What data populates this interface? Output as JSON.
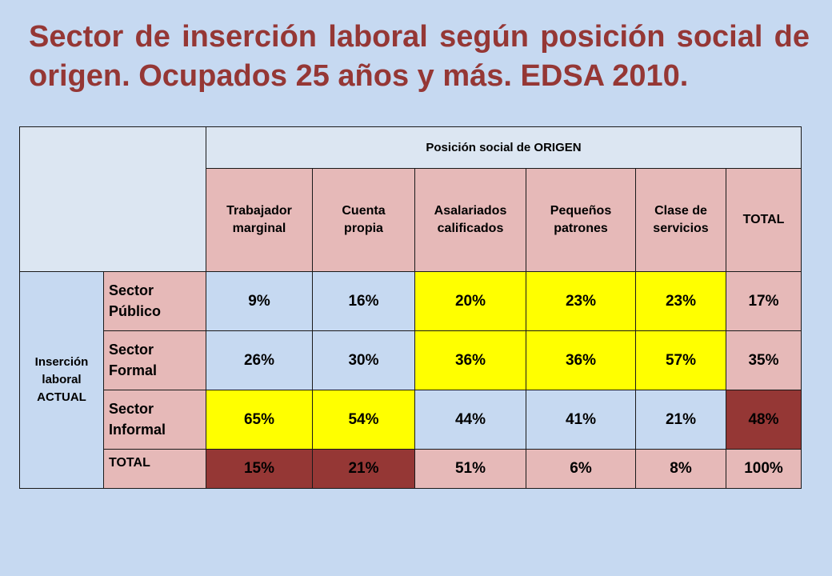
{
  "title": "Sector de inserción laboral según posición social de origen. Ocupados 25 años y más. EDSA 2010.",
  "table": {
    "origin_header": "Posición social de ORIGEN",
    "group_label_lines": [
      "Inserción",
      "laboral",
      "ACTUAL"
    ],
    "columns": [
      [
        "Trabajador",
        "marginal"
      ],
      [
        "Cuenta",
        "propia"
      ],
      [
        "Asalariados",
        "calificados"
      ],
      [
        "Pequeños",
        "patrones"
      ],
      [
        "Clase de",
        "servicios"
      ],
      [
        "TOTAL"
      ]
    ],
    "rows": [
      {
        "label": [
          "Sector",
          "Público"
        ],
        "values": [
          "9%",
          "16%",
          "20%",
          "23%",
          "23%",
          "17%"
        ],
        "colors": [
          "#c6d9f1",
          "#c6d9f1",
          "#ffff00",
          "#ffff00",
          "#ffff00",
          "#e6b9b8"
        ]
      },
      {
        "label": [
          "Sector",
          "Formal"
        ],
        "values": [
          "26%",
          "30%",
          "36%",
          "36%",
          "57%",
          "35%"
        ],
        "colors": [
          "#c6d9f1",
          "#c6d9f1",
          "#ffff00",
          "#ffff00",
          "#ffff00",
          "#e6b9b8"
        ]
      },
      {
        "label": [
          "Sector",
          "Informal"
        ],
        "values": [
          "65%",
          "54%",
          "44%",
          "41%",
          "21%",
          "48%"
        ],
        "colors": [
          "#ffff00",
          "#ffff00",
          "#c6d9f1",
          "#c6d9f1",
          "#c6d9f1",
          "#953735"
        ]
      },
      {
        "label": [
          "TOTAL"
        ],
        "values": [
          "15%",
          "21%",
          "51%",
          "6%",
          "8%",
          "100%"
        ],
        "colors": [
          "#953735",
          "#953735",
          "#e6b9b8",
          "#e6b9b8",
          "#e6b9b8",
          "#e6b9b8"
        ]
      }
    ]
  },
  "colors": {
    "background": "#c6d9f1",
    "title": "#953735",
    "header_blue": "#dce6f2",
    "header_pink": "#e6b9b8",
    "highlight_yellow": "#ffff00",
    "highlight_dark": "#953735"
  }
}
